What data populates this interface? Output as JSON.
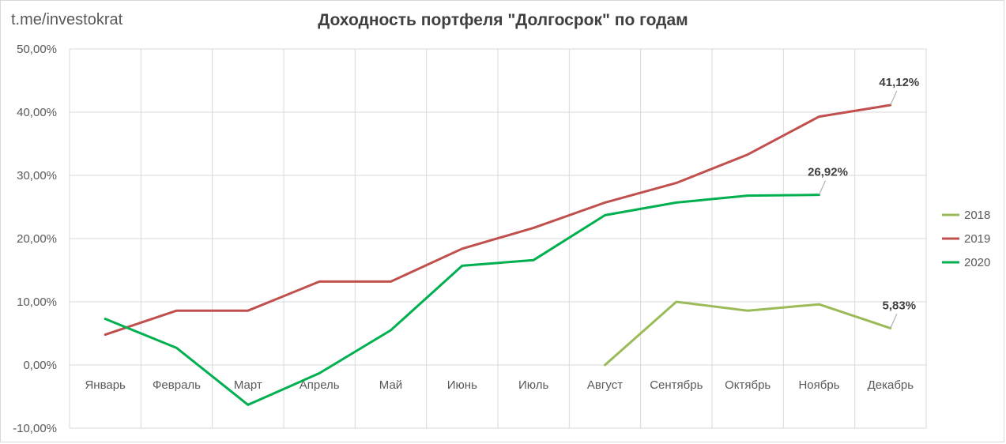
{
  "watermark": "t.me/investokrat",
  "chart_data": {
    "type": "line",
    "title": "Доходность портфеля \"Долгосрок\" по годам",
    "xlabel": "",
    "ylabel": "",
    "categories": [
      "Январь",
      "Февраль",
      "Март",
      "Апрель",
      "Май",
      "Июнь",
      "Июль",
      "Август",
      "Сентябрь",
      "Октябрь",
      "Ноябрь",
      "Декабрь"
    ],
    "ylim": [
      -10,
      50
    ],
    "yticks": [
      -10,
      0,
      10,
      20,
      30,
      40,
      50
    ],
    "ytick_labels": [
      "-10,00%",
      "0,00%",
      "10,00%",
      "20,00%",
      "30,00%",
      "40,00%",
      "50,00%"
    ],
    "grid": true,
    "legend_position": "right",
    "series": [
      {
        "name": "2018",
        "color": "#9bbb59",
        "values": [
          null,
          null,
          null,
          null,
          null,
          null,
          null,
          0.0,
          10.0,
          8.6,
          9.6,
          5.83
        ]
      },
      {
        "name": "2019",
        "color": "#c0504d",
        "values": [
          4.8,
          8.6,
          8.6,
          13.2,
          13.2,
          18.4,
          21.7,
          25.7,
          28.8,
          33.3,
          39.3,
          41.12
        ]
      },
      {
        "name": "2020",
        "color": "#00b050",
        "values": [
          7.3,
          2.7,
          -6.3,
          -1.3,
          5.5,
          15.7,
          16.6,
          23.7,
          25.7,
          26.8,
          26.92,
          null
        ]
      }
    ],
    "annotations": [
      {
        "series": "2019",
        "index": 11,
        "text": "41,12%"
      },
      {
        "series": "2020",
        "index": 10,
        "text": "26,92%"
      },
      {
        "series": "2018",
        "index": 11,
        "text": "5,83%"
      }
    ]
  }
}
